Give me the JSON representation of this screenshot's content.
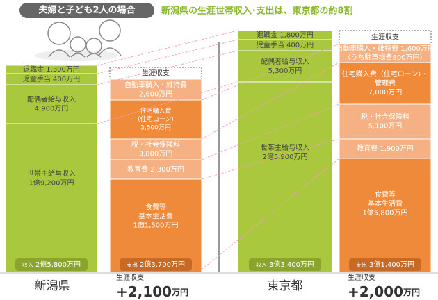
{
  "header": {
    "badge": "夫婦と子ども2人の場合",
    "headline": "新潟県の生涯世帯収入･支出は、東京都の約8割"
  },
  "regions": [
    {
      "name": "新潟県",
      "income": {
        "items": [
          [
            "退職金 1,300万円"
          ],
          [
            "児童手当 400万円"
          ],
          [
            "配偶者給与収入",
            "4,900万円"
          ],
          [
            "世帯主給与収入",
            "1億9,200万円"
          ]
        ],
        "total": {
          "label": "収入",
          "amount": "2億5,800万円"
        }
      },
      "expense": {
        "heading": "生涯収支",
        "items": [
          [
            "自動車購入・維持費",
            "2,600万円"
          ],
          [
            "住宅購入費",
            "（住宅ローン）",
            "3,500万円"
          ],
          [
            "税・社会保険料",
            "3,800万円"
          ],
          [
            "教育費 2,300万円"
          ],
          [
            "食費等",
            "基本生活費",
            "1億1,500万円"
          ]
        ],
        "total": {
          "label": "支出",
          "amount": "2億3,700万円"
        }
      },
      "balance": {
        "label": "生涯収支",
        "amount": "+2,100",
        "unit": "万円"
      }
    },
    {
      "name": "東京都",
      "income": {
        "items": [
          [
            "退職金 1,800万円"
          ],
          [
            "児童手当 400万円"
          ],
          [
            "配偶者給与収入",
            "5,300万円"
          ],
          [
            "世帯主給与収入",
            "2億5,900万円"
          ]
        ],
        "total": {
          "label": "収入",
          "amount": "3億3,400万円"
        }
      },
      "expense": {
        "heading": "生涯収支",
        "items": [
          [
            "自動車購入・維持費 1,600万円",
            "（うち駐車場費800万円）"
          ],
          [
            "住宅購入費（住宅ローン）・",
            "管理費",
            "7,000万円"
          ],
          [
            "税・社会保険料",
            "5,100万円"
          ],
          [
            "教育費 1,900万円"
          ],
          [
            "食費等",
            "基本生活費",
            "1億5,800万円"
          ]
        ],
        "total": {
          "label": "支出",
          "amount": "3億1,400万円"
        }
      },
      "balance": {
        "label": "生涯収支",
        "amount": "+2,000",
        "unit": "万円"
      }
    }
  ]
}
